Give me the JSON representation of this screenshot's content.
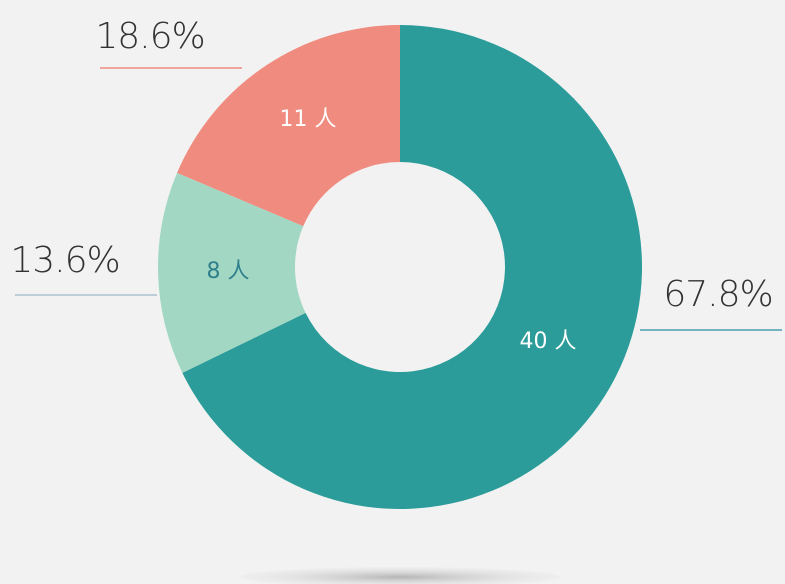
{
  "chart_data": {
    "type": "donut",
    "values": [
      40,
      8,
      11
    ],
    "value_labels": [
      "40 人",
      "8 人",
      "11 人"
    ],
    "percent_values": [
      67.8,
      13.6,
      18.6
    ],
    "percent_labels": [
      "67.8%",
      "13.6%",
      "18.6%"
    ],
    "colors": [
      "#2b9c9a",
      "#a2d8c3",
      "#f08b7f"
    ],
    "label_colors": [
      "#ffffff",
      "#2f7f8c",
      "#ffffff"
    ]
  }
}
